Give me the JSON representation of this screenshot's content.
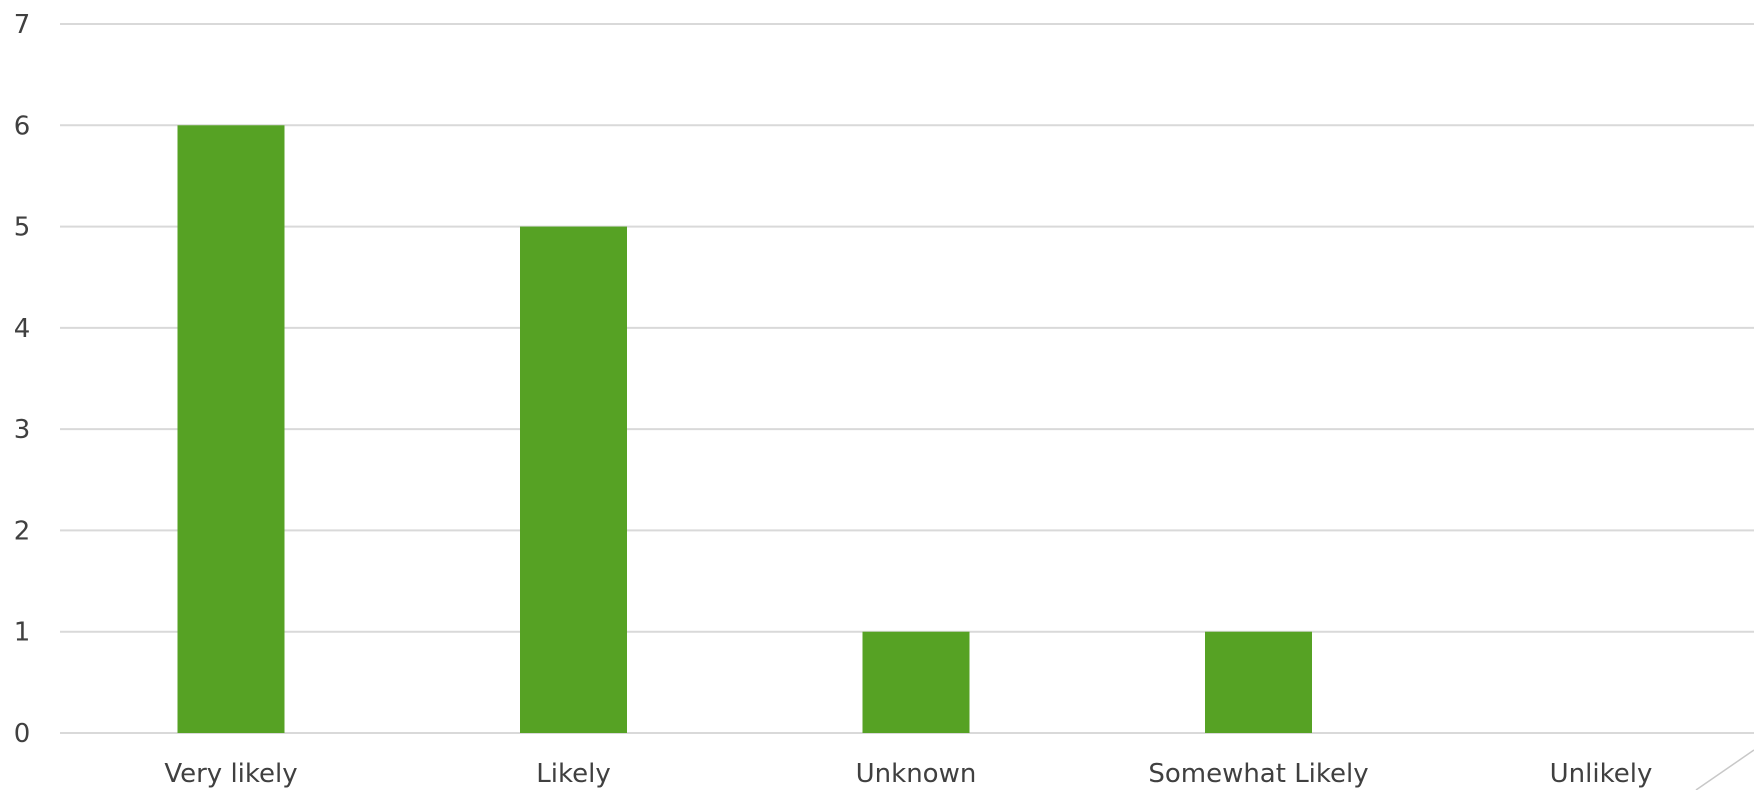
{
  "chart_data": {
    "type": "bar",
    "categories": [
      "Very likely",
      "Likely",
      "Unknown",
      "Somewhat Likely",
      "Unlikely"
    ],
    "values": [
      6,
      5,
      1,
      1,
      0
    ],
    "title": "",
    "xlabel": "",
    "ylabel": "",
    "ylim": [
      0,
      7
    ],
    "yticks": [
      0,
      1,
      2,
      3,
      4,
      5,
      6,
      7
    ],
    "ytick_labels": [
      "0",
      "1",
      "2",
      "3",
      "4",
      "5",
      "6",
      "7"
    ],
    "grid": true,
    "legend": "none",
    "bar_color": "#56a224",
    "grid_color": "#d9d9d9",
    "text_color": "#404040"
  }
}
